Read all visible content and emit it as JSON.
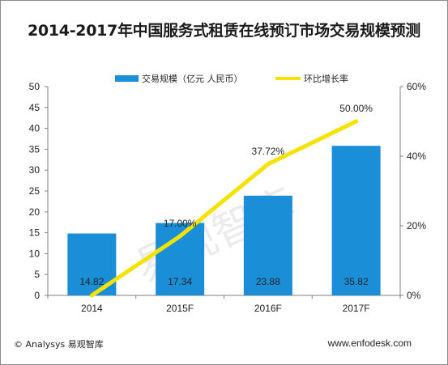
{
  "title": "2014-2017年中国服务式租赁在线预订市场交易规模预测",
  "watermark": "易观智库",
  "footer": {
    "copyright": "© Analysys 易观智库",
    "website": "www.enfodesk.com"
  },
  "colors": {
    "bar": "#1a8fd8",
    "line": "#f5e200",
    "axis": "#808080"
  },
  "chart_data": {
    "type": "bar",
    "categories": [
      "2014",
      "2015F",
      "2016F",
      "2017F"
    ],
    "series": [
      {
        "name": "交易规模（亿元 人民币）",
        "type": "bar",
        "axis": "left",
        "values": [
          14.82,
          17.34,
          23.88,
          35.82
        ],
        "labels": [
          "14.82",
          "17.34",
          "23.88",
          "35.82"
        ]
      },
      {
        "name": "环比增长率",
        "type": "line",
        "axis": "right",
        "values": [
          0,
          17.0,
          37.72,
          50.0
        ],
        "labels": [
          "",
          "17.00%",
          "37.72%",
          "50.00%"
        ]
      }
    ],
    "left_axis": {
      "min": 0,
      "max": 50,
      "ticks": [
        "0",
        "5",
        "10",
        "15",
        "20",
        "25",
        "30",
        "35",
        "40",
        "45",
        "50"
      ]
    },
    "right_axis": {
      "min": 0,
      "max": 60,
      "ticks": [
        "0%",
        "20%",
        "40%",
        "60%"
      ]
    },
    "legend_position": "top"
  }
}
